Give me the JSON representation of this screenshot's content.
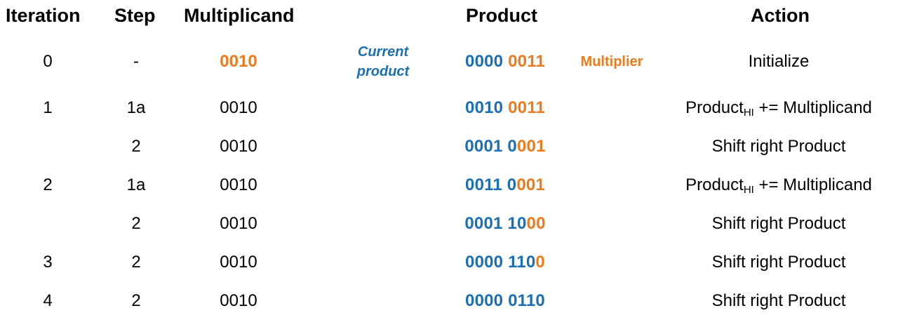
{
  "headers": {
    "iteration": "Iteration",
    "step": "Step",
    "multiplicand": "Multiplicand",
    "product": "Product",
    "action": "Action"
  },
  "annotations": {
    "current_product_line1": "Current",
    "current_product_line2": "product",
    "multiplier": "Multiplier"
  },
  "rows": [
    {
      "iteration": "0",
      "step": "-",
      "multiplicand": "0010",
      "product_blue": "0000 ",
      "product_orange": "0011",
      "action": "Initialize",
      "action_sub": "",
      "action_rest": ""
    },
    {
      "iteration": "1",
      "step": "1a",
      "multiplicand": "0010",
      "product_blue": "0010 ",
      "product_orange": "0011",
      "action": "Product",
      "action_sub": "HI",
      "action_rest": " += Multiplicand"
    },
    {
      "iteration": "",
      "step": "2",
      "multiplicand": "0010",
      "product_blue": "0001 0",
      "product_orange": "001",
      "action": "Shift right Product",
      "action_sub": "",
      "action_rest": ""
    },
    {
      "iteration": "2",
      "step": "1a",
      "multiplicand": "0010",
      "product_blue": "0011 0",
      "product_orange": "001",
      "action": "Product",
      "action_sub": "HI",
      "action_rest": " += Multiplicand"
    },
    {
      "iteration": "",
      "step": "2",
      "multiplicand": "0010",
      "product_blue": "0001 10",
      "product_orange": "00",
      "action": "Shift right Product",
      "action_sub": "",
      "action_rest": ""
    },
    {
      "iteration": "3",
      "step": "2",
      "multiplicand": "0010",
      "product_blue": "0000 110",
      "product_orange": "0",
      "action": "Shift right Product",
      "action_sub": "",
      "action_rest": ""
    },
    {
      "iteration": "4",
      "step": "2",
      "multiplicand": "0010",
      "product_blue": "0000 0110",
      "product_orange": "",
      "action": "Shift right Product",
      "action_sub": "",
      "action_rest": ""
    }
  ],
  "colors": {
    "product_high": "#1a6fb5",
    "multiplier_bits": "#ee7a1b",
    "text": "#000000",
    "background": "#ffffff"
  }
}
